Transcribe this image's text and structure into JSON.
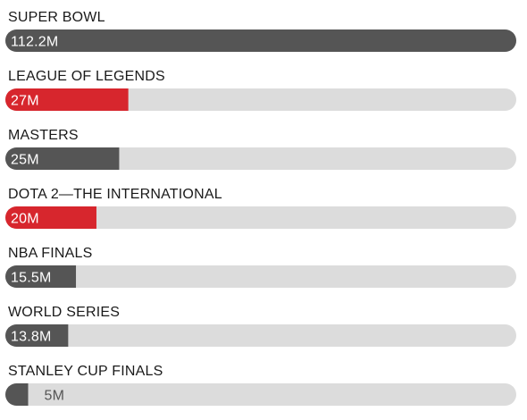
{
  "chart_data": {
    "type": "bar",
    "orientation": "horizontal",
    "title": "",
    "xlabel": "",
    "ylabel": "",
    "xlim": [
      0,
      112.2
    ],
    "grid": false,
    "legend": "none",
    "categories": [
      "SUPER BOWL",
      "LEAGUE OF LEGENDS",
      "MASTERS",
      "DOTA 2—THE INTERNATIONAL",
      "NBA FINALS",
      "WORLD SERIES",
      "STANLEY CUP FINALS"
    ],
    "values": [
      112.2,
      27,
      25,
      20,
      15.5,
      13.8,
      5
    ],
    "value_labels": [
      "112.2M",
      "27M",
      "25M",
      "20M",
      "15.5M",
      "13.8M",
      "5M"
    ],
    "bar_colors": [
      "#555555",
      "#d7262d",
      "#555555",
      "#d7262d",
      "#555555",
      "#555555",
      "#555555"
    ],
    "track_color": "#dcdcdc"
  }
}
